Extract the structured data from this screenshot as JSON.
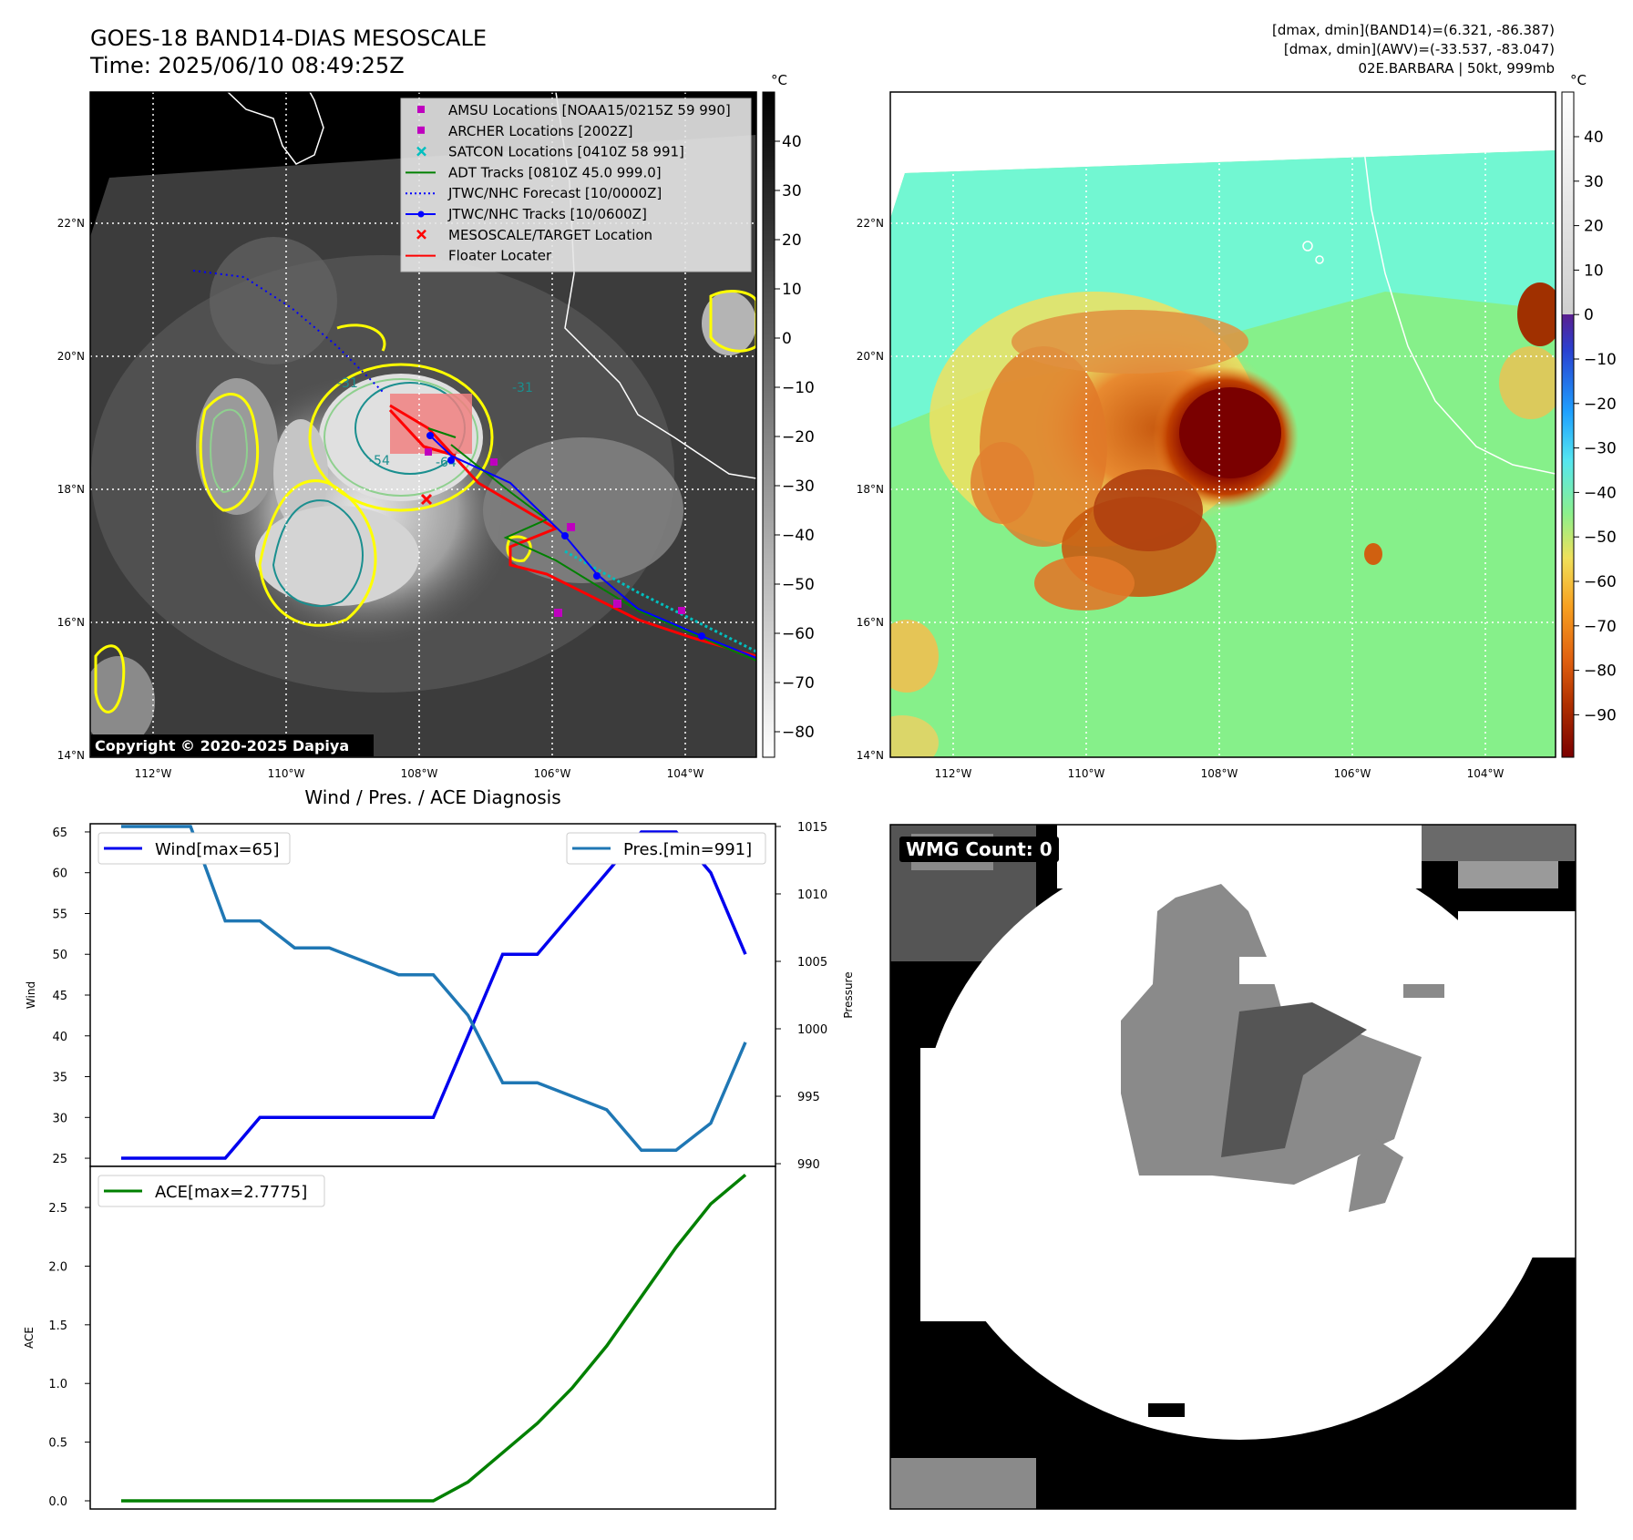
{
  "header": {
    "title_line1": "GOES-18 BAND14-DIAS MESOSCALE",
    "title_line2": "Time: 2025/06/10 08:49:25Z",
    "info_line1": "[dmax, dmin](BAND14)=(6.321, -86.387)",
    "info_line2": "[dmax, dmin](AWV)=(-33.537, -83.047)",
    "info_line3": "02E.BARBARA | 50kt, 999mb",
    "copyright": "Copyright © 2020-2025 Dapiya",
    "wmg_count": "WMG Count: 0"
  },
  "colors": {
    "wind": "#0000ee",
    "pressure": "#1f77b4",
    "ace": "#008000",
    "track_red": "#ff0000",
    "track_blue": "#0000ff",
    "track_green": "#008000",
    "contour_yellow": "#ffff00",
    "contour_teal": "#1a8f8f"
  },
  "map": {
    "lat_labels": [
      "22°N",
      "20°N",
      "18°N",
      "16°N",
      "14°N"
    ],
    "lon_labels": [
      "112°W",
      "110°W",
      "108°W",
      "106°W",
      "104°W"
    ],
    "colorbar_unit": "°C",
    "gray_ticks": [
      "40",
      "30",
      "20",
      "10",
      "0",
      "−10",
      "−20",
      "−30",
      "−40",
      "−50",
      "−60",
      "−70",
      "−80"
    ],
    "color_ticks": [
      "40",
      "30",
      "20",
      "10",
      "0",
      "−10",
      "−20",
      "−30",
      "−40",
      "−50",
      "−60",
      "−70",
      "−80",
      "−90"
    ],
    "legend": [
      {
        "label": "AMSU Locations [NOAA15/0215Z 59 990]",
        "marker": "square",
        "color": "#bf00bf"
      },
      {
        "label": "ARCHER Locations [2002Z]",
        "marker": "square",
        "color": "#bf00bf"
      },
      {
        "label": "SATCON Locations [0410Z 58 991]",
        "marker": "x",
        "color": "#00bfbf"
      },
      {
        "label": "ADT Tracks [0810Z 45.0 999.0]",
        "marker": "line",
        "color": "#008000"
      },
      {
        "label": "JTWC/NHC Forecast [10/0000Z]",
        "marker": "dotted",
        "color": "#0000ff"
      },
      {
        "label": "JTWC/NHC Tracks [10/0600Z]",
        "marker": "line-dot",
        "color": "#0000ff"
      },
      {
        "label": "MESOSCALE/TARGET Location",
        "marker": "x",
        "color": "#ff0000"
      },
      {
        "label": "Floater Locater",
        "marker": "line",
        "color": "#ff0000"
      }
    ],
    "contour_labels": [
      "-31",
      "-54",
      "-64",
      "-31"
    ]
  },
  "chart_data": [
    {
      "type": "line",
      "title": "Wind / Pres. / ACE Diagnosis",
      "ylabel": "Wind",
      "y2label": "Pressure",
      "ylim": [
        24,
        66
      ],
      "y2lim": [
        989.8,
        1015.2
      ],
      "yticks": [
        "25",
        "30",
        "35",
        "40",
        "45",
        "50",
        "55",
        "60",
        "65"
      ],
      "y2ticks": [
        "990",
        "995",
        "1000",
        "1005",
        "1010",
        "1015"
      ],
      "series": [
        {
          "name": "Wind[max=65]",
          "axis": "left",
          "values": [
            25,
            25,
            25,
            25,
            30,
            30,
            30,
            30,
            30,
            30,
            40,
            50,
            50,
            55,
            60,
            65,
            65,
            60,
            50
          ]
        },
        {
          "name": "Pres.[min=991]",
          "axis": "right",
          "values": [
            1015,
            1015,
            1015,
            1008,
            1008,
            1006,
            1006,
            1005,
            1004,
            1004,
            1001,
            996,
            996,
            995,
            994,
            991,
            991,
            993,
            999
          ]
        }
      ]
    },
    {
      "type": "line",
      "ylabel": "ACE",
      "ylim": [
        -0.07,
        2.85
      ],
      "yticks": [
        "0.0",
        "0.5",
        "1.0",
        "1.5",
        "2.0",
        "2.5"
      ],
      "series": [
        {
          "name": "ACE[max=2.7775]",
          "values": [
            0,
            0,
            0,
            0,
            0,
            0,
            0,
            0,
            0,
            0,
            0.16,
            0.41,
            0.66,
            0.96,
            1.32,
            1.74,
            2.16,
            2.53,
            2.7775
          ]
        }
      ]
    }
  ]
}
